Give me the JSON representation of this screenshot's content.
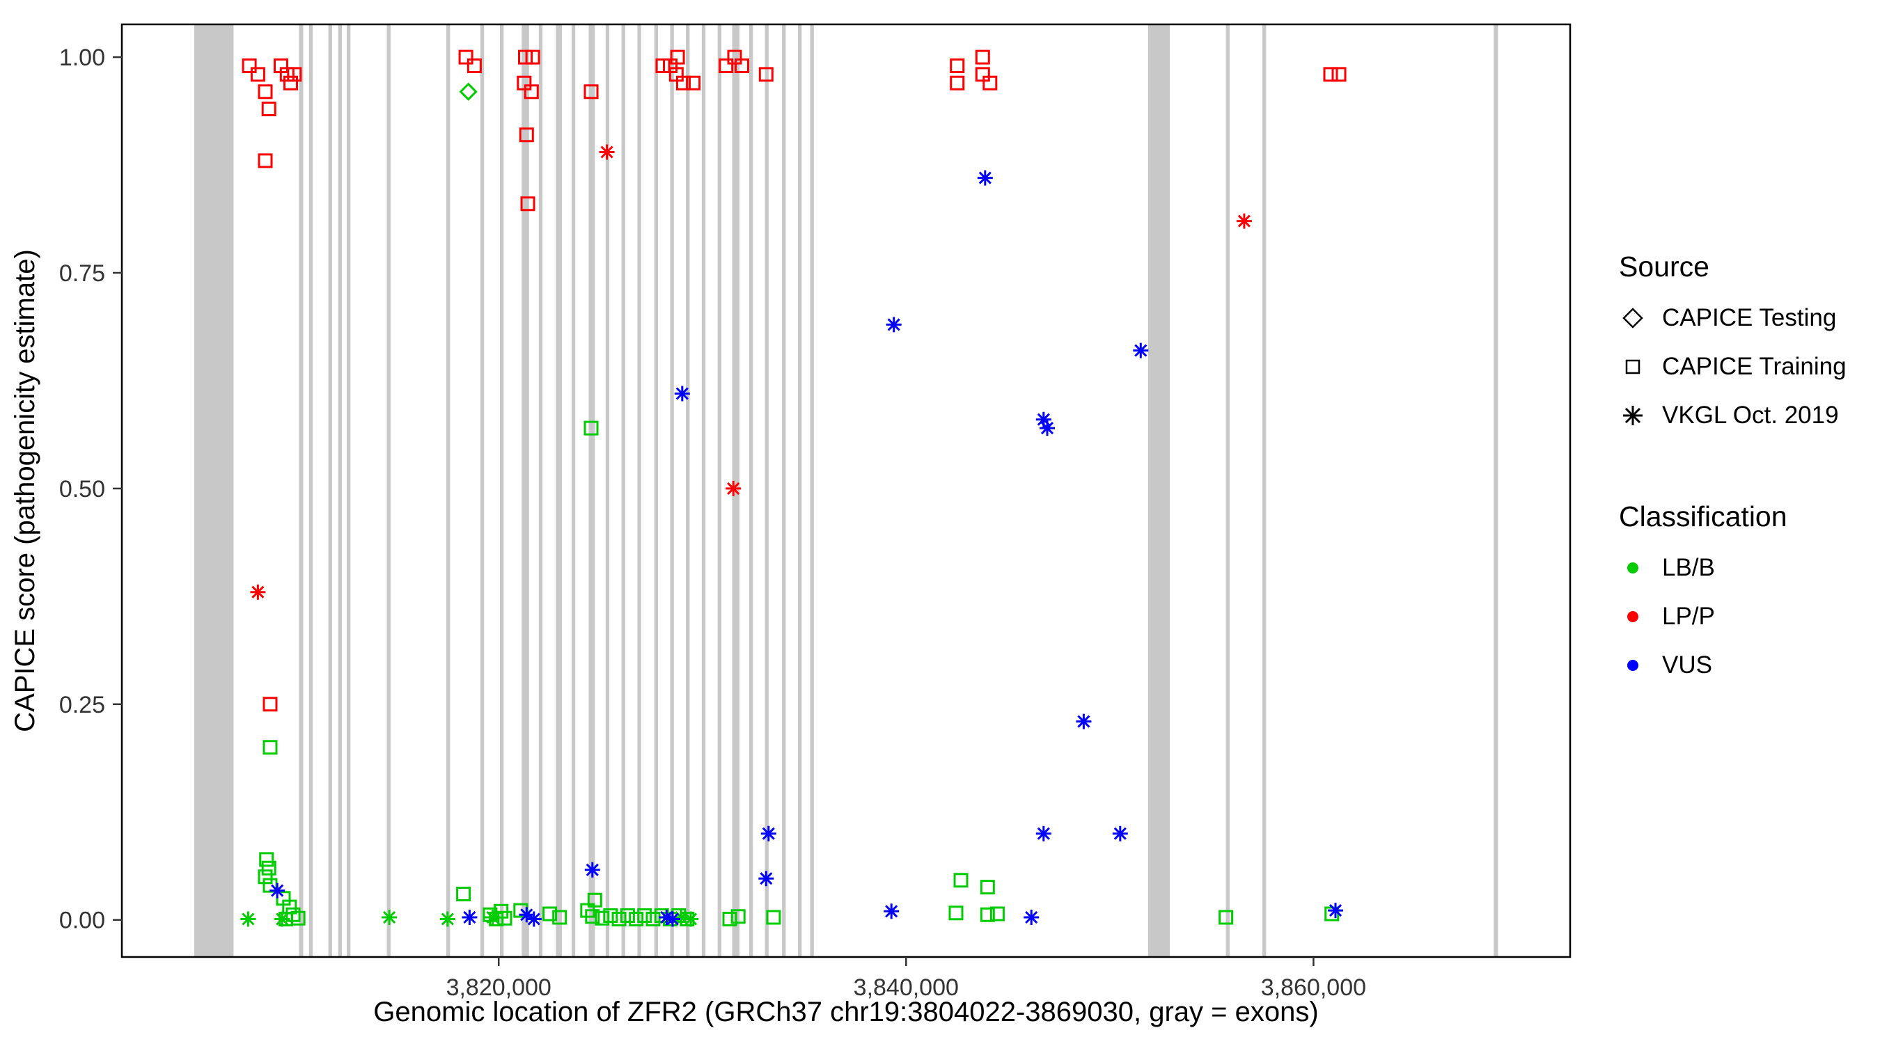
{
  "figure": {
    "xlabel": "Genomic location of ZFR2 (GRCh37 chr19:3804022-3869030, gray = exons)",
    "ylabel": "CAPICE score (pathogenicity estimate)"
  },
  "legend": {
    "source": {
      "title": "Source",
      "items": [
        {
          "label": "CAPICE Testing",
          "shape": "diamond"
        },
        {
          "label": "CAPICE Training",
          "shape": "square"
        },
        {
          "label": "VKGL Oct. 2019",
          "shape": "asterisk"
        }
      ]
    },
    "classification": {
      "title": "Classification",
      "items": [
        {
          "label": "LB/B",
          "color": "#00CC00"
        },
        {
          "label": "LP/P",
          "color": "#FF0000"
        },
        {
          "label": "VUS",
          "color": "#0000FF"
        }
      ]
    }
  },
  "colors": {
    "LB/B": "#00CC00",
    "LP/P": "#FF0000",
    "VUS": "#0000FF",
    "exon": "#C8C8C8",
    "axis_text": "#333333",
    "panel_border": "#000000"
  },
  "chart_data": {
    "type": "scatter",
    "title": "",
    "xlabel": "Genomic location of ZFR2 (GRCh37 chr19:3804022-3869030, gray = exons)",
    "ylabel": "CAPICE score (pathogenicity estimate)",
    "xlim": [
      3801500,
      3872600
    ],
    "ylim": [
      -0.043,
      1.038
    ],
    "x_ticks": [
      {
        "value": 3820000,
        "label": "3,820,000"
      },
      {
        "value": 3840000,
        "label": "3,840,000"
      },
      {
        "value": 3860000,
        "label": "3,860,000"
      }
    ],
    "y_ticks": [
      {
        "value": 0.0,
        "label": "0.00"
      },
      {
        "value": 0.25,
        "label": "0.25"
      },
      {
        "value": 0.5,
        "label": "0.50"
      },
      {
        "value": 0.75,
        "label": "0.75"
      },
      {
        "value": 1.0,
        "label": "1.00"
      }
    ],
    "grid": false,
    "legend_position": "right",
    "shape_by_source": {
      "CAPICE Testing": "diamond",
      "CAPICE Training": "square",
      "VKGL Oct. 2019": "asterisk"
    },
    "exons": [
      [
        3805050,
        3806980
      ],
      [
        3810200,
        3810400
      ],
      [
        3810690,
        3810870
      ],
      [
        3811640,
        3811820
      ],
      [
        3812120,
        3812300
      ],
      [
        3812540,
        3812720
      ],
      [
        3814510,
        3814690
      ],
      [
        3817430,
        3817610
      ],
      [
        3819100,
        3819280
      ],
      [
        3820060,
        3820240
      ],
      [
        3821130,
        3821490
      ],
      [
        3821970,
        3822150
      ],
      [
        3822810,
        3823100
      ],
      [
        3823580,
        3823760
      ],
      [
        3824420,
        3824720
      ],
      [
        3825250,
        3825430
      ],
      [
        3826030,
        3826210
      ],
      [
        3826810,
        3826990
      ],
      [
        3827640,
        3827820
      ],
      [
        3828420,
        3828600
      ],
      [
        3829190,
        3829370
      ],
      [
        3829970,
        3830150
      ],
      [
        3830750,
        3830930
      ],
      [
        3831460,
        3831820
      ],
      [
        3832300,
        3832480
      ],
      [
        3833070,
        3833250
      ],
      [
        3833910,
        3834090
      ],
      [
        3834690,
        3834870
      ],
      [
        3835290,
        3835470
      ],
      [
        3851880,
        3852950
      ],
      [
        3855700,
        3855880
      ],
      [
        3857490,
        3857670
      ],
      [
        3868850,
        3869060
      ]
    ],
    "points_format": [
      "genomic_position",
      "capice_score",
      "classification",
      "source"
    ],
    "points": [
      [
        3807760,
        0.99,
        "LP/P",
        "CAPICE Training"
      ],
      [
        3808180,
        0.98,
        "LP/P",
        "CAPICE Training"
      ],
      [
        3808540,
        0.96,
        "LP/P",
        "CAPICE Training"
      ],
      [
        3808720,
        0.94,
        "LP/P",
        "CAPICE Training"
      ],
      [
        3809310,
        0.99,
        "LP/P",
        "CAPICE Training"
      ],
      [
        3809610,
        0.98,
        "LP/P",
        "CAPICE Training"
      ],
      [
        3809790,
        0.97,
        "LP/P",
        "CAPICE Training"
      ],
      [
        3809970,
        0.98,
        "LP/P",
        "CAPICE Training"
      ],
      [
        3808540,
        0.88,
        "LP/P",
        "CAPICE Training"
      ],
      [
        3808780,
        0.25,
        "LP/P",
        "CAPICE Training"
      ],
      [
        3818390,
        1.0,
        "LP/P",
        "CAPICE Training"
      ],
      [
        3818810,
        0.99,
        "LP/P",
        "CAPICE Training"
      ],
      [
        3821310,
        1.0,
        "LP/P",
        "CAPICE Training"
      ],
      [
        3821670,
        1.0,
        "LP/P",
        "CAPICE Training"
      ],
      [
        3821250,
        0.97,
        "LP/P",
        "CAPICE Training"
      ],
      [
        3821610,
        0.96,
        "LP/P",
        "CAPICE Training"
      ],
      [
        3821370,
        0.91,
        "LP/P",
        "CAPICE Training"
      ],
      [
        3821430,
        0.83,
        "LP/P",
        "CAPICE Training"
      ],
      [
        3824540,
        0.96,
        "LP/P",
        "CAPICE Training"
      ],
      [
        3828060,
        0.99,
        "LP/P",
        "CAPICE Training"
      ],
      [
        3828420,
        0.99,
        "LP/P",
        "CAPICE Training"
      ],
      [
        3828780,
        1.0,
        "LP/P",
        "CAPICE Training"
      ],
      [
        3828720,
        0.98,
        "LP/P",
        "CAPICE Training"
      ],
      [
        3829070,
        0.97,
        "LP/P",
        "CAPICE Training"
      ],
      [
        3829550,
        0.97,
        "LP/P",
        "CAPICE Training"
      ],
      [
        3831160,
        0.99,
        "LP/P",
        "CAPICE Training"
      ],
      [
        3831580,
        1.0,
        "LP/P",
        "CAPICE Training"
      ],
      [
        3831940,
        0.99,
        "LP/P",
        "CAPICE Training"
      ],
      [
        3833130,
        0.98,
        "LP/P",
        "CAPICE Training"
      ],
      [
        3842510,
        0.99,
        "LP/P",
        "CAPICE Training"
      ],
      [
        3842510,
        0.97,
        "LP/P",
        "CAPICE Training"
      ],
      [
        3843760,
        1.0,
        "LP/P",
        "CAPICE Training"
      ],
      [
        3843760,
        0.98,
        "LP/P",
        "CAPICE Training"
      ],
      [
        3844120,
        0.97,
        "LP/P",
        "CAPICE Training"
      ],
      [
        3860840,
        0.98,
        "LP/P",
        "CAPICE Training"
      ],
      [
        3861250,
        0.98,
        "LP/P",
        "CAPICE Training"
      ],
      [
        3808180,
        0.38,
        "LP/P",
        "VKGL Oct. 2019"
      ],
      [
        3825310,
        0.89,
        "LP/P",
        "VKGL Oct. 2019"
      ],
      [
        3831520,
        0.5,
        "LP/P",
        "VKGL Oct. 2019"
      ],
      [
        3856600,
        0.81,
        "LP/P",
        "VKGL Oct. 2019"
      ],
      [
        3818510,
        0.96,
        "LB/B",
        "CAPICE Testing"
      ],
      [
        3808780,
        0.2,
        "LB/B",
        "CAPICE Training"
      ],
      [
        3808600,
        0.07,
        "LB/B",
        "CAPICE Training"
      ],
      [
        3808720,
        0.06,
        "LB/B",
        "CAPICE Training"
      ],
      [
        3808540,
        0.05,
        "LB/B",
        "CAPICE Training"
      ],
      [
        3808780,
        0.04,
        "LB/B",
        "CAPICE Training"
      ],
      [
        3809430,
        0.025,
        "LB/B",
        "CAPICE Training"
      ],
      [
        3809730,
        0.015,
        "LB/B",
        "CAPICE Training"
      ],
      [
        3809910,
        0.006,
        "LB/B",
        "CAPICE Training"
      ],
      [
        3809550,
        0.001,
        "LB/B",
        "CAPICE Training"
      ],
      [
        3810150,
        0.002,
        "LB/B",
        "CAPICE Training"
      ],
      [
        3818270,
        0.03,
        "LB/B",
        "CAPICE Training"
      ],
      [
        3819580,
        0.006,
        "LB/B",
        "CAPICE Training"
      ],
      [
        3819880,
        0.001,
        "LB/B",
        "CAPICE Training"
      ],
      [
        3820120,
        0.01,
        "LB/B",
        "CAPICE Training"
      ],
      [
        3820300,
        0.002,
        "LB/B",
        "CAPICE Training"
      ],
      [
        3821080,
        0.011,
        "LB/B",
        "CAPICE Training"
      ],
      [
        3822510,
        0.007,
        "LB/B",
        "CAPICE Training"
      ],
      [
        3822990,
        0.003,
        "LB/B",
        "CAPICE Training"
      ],
      [
        3824540,
        0.57,
        "LB/B",
        "CAPICE Training"
      ],
      [
        3824720,
        0.023,
        "LB/B",
        "CAPICE Training"
      ],
      [
        3824360,
        0.011,
        "LB/B",
        "CAPICE Training"
      ],
      [
        3824600,
        0.004,
        "LB/B",
        "CAPICE Training"
      ],
      [
        3825080,
        0.002,
        "LB/B",
        "CAPICE Training"
      ],
      [
        3825490,
        0.005,
        "LB/B",
        "CAPICE Training"
      ],
      [
        3825910,
        0.001,
        "LB/B",
        "CAPICE Training"
      ],
      [
        3826330,
        0.005,
        "LB/B",
        "CAPICE Training"
      ],
      [
        3826750,
        0.001,
        "LB/B",
        "CAPICE Training"
      ],
      [
        3827160,
        0.005,
        "LB/B",
        "CAPICE Training"
      ],
      [
        3827580,
        0.001,
        "LB/B",
        "CAPICE Training"
      ],
      [
        3828000,
        0.005,
        "LB/B",
        "CAPICE Training"
      ],
      [
        3828420,
        0.001,
        "LB/B",
        "CAPICE Training"
      ],
      [
        3828840,
        0.005,
        "LB/B",
        "CAPICE Training"
      ],
      [
        3829250,
        0.001,
        "LB/B",
        "CAPICE Training"
      ],
      [
        3831340,
        0.001,
        "LB/B",
        "CAPICE Training"
      ],
      [
        3831760,
        0.004,
        "LB/B",
        "CAPICE Training"
      ],
      [
        3833490,
        0.003,
        "LB/B",
        "CAPICE Training"
      ],
      [
        3842690,
        0.046,
        "LB/B",
        "CAPICE Training"
      ],
      [
        3844000,
        0.038,
        "LB/B",
        "CAPICE Training"
      ],
      [
        3842450,
        0.008,
        "LB/B",
        "CAPICE Training"
      ],
      [
        3844000,
        0.006,
        "LB/B",
        "CAPICE Training"
      ],
      [
        3844480,
        0.007,
        "LB/B",
        "CAPICE Training"
      ],
      [
        3855700,
        0.003,
        "LB/B",
        "CAPICE Training"
      ],
      [
        3860900,
        0.007,
        "LB/B",
        "CAPICE Training"
      ],
      [
        3807700,
        0.001,
        "LB/B",
        "VKGL Oct. 2019"
      ],
      [
        3809370,
        0.001,
        "LB/B",
        "VKGL Oct. 2019"
      ],
      [
        3814630,
        0.003,
        "LB/B",
        "VKGL Oct. 2019"
      ],
      [
        3817490,
        0.001,
        "LB/B",
        "VKGL Oct. 2019"
      ],
      [
        3819700,
        0.003,
        "LB/B",
        "VKGL Oct. 2019"
      ],
      [
        3828960,
        0.003,
        "LB/B",
        "VKGL Oct. 2019"
      ],
      [
        3829430,
        0.001,
        "LB/B",
        "VKGL Oct. 2019"
      ],
      [
        3809130,
        0.034,
        "VUS",
        "VKGL Oct. 2019"
      ],
      [
        3818570,
        0.003,
        "VUS",
        "VKGL Oct. 2019"
      ],
      [
        3821370,
        0.006,
        "VUS",
        "VKGL Oct. 2019"
      ],
      [
        3821730,
        0.001,
        "VUS",
        "VKGL Oct. 2019"
      ],
      [
        3824600,
        0.058,
        "VUS",
        "VKGL Oct. 2019"
      ],
      [
        3828240,
        0.003,
        "VUS",
        "VKGL Oct. 2019"
      ],
      [
        3828540,
        0.001,
        "VUS",
        "VKGL Oct. 2019"
      ],
      [
        3829010,
        0.61,
        "VUS",
        "VKGL Oct. 2019"
      ],
      [
        3833250,
        0.1,
        "VUS",
        "VKGL Oct. 2019"
      ],
      [
        3833130,
        0.048,
        "VUS",
        "VKGL Oct. 2019"
      ],
      [
        3839400,
        0.69,
        "VUS",
        "VKGL Oct. 2019"
      ],
      [
        3839280,
        0.01,
        "VUS",
        "VKGL Oct. 2019"
      ],
      [
        3843880,
        0.86,
        "VUS",
        "VKGL Oct. 2019"
      ],
      [
        3846150,
        0.003,
        "VUS",
        "VKGL Oct. 2019"
      ],
      [
        3846750,
        0.58,
        "VUS",
        "VKGL Oct. 2019"
      ],
      [
        3846930,
        0.57,
        "VUS",
        "VKGL Oct. 2019"
      ],
      [
        3846750,
        0.1,
        "VUS",
        "VKGL Oct. 2019"
      ],
      [
        3848720,
        0.23,
        "VUS",
        "VKGL Oct. 2019"
      ],
      [
        3850510,
        0.1,
        "VUS",
        "VKGL Oct. 2019"
      ],
      [
        3851520,
        0.66,
        "VUS",
        "VKGL Oct. 2019"
      ],
      [
        3861080,
        0.011,
        "VUS",
        "VKGL Oct. 2019"
      ]
    ]
  }
}
